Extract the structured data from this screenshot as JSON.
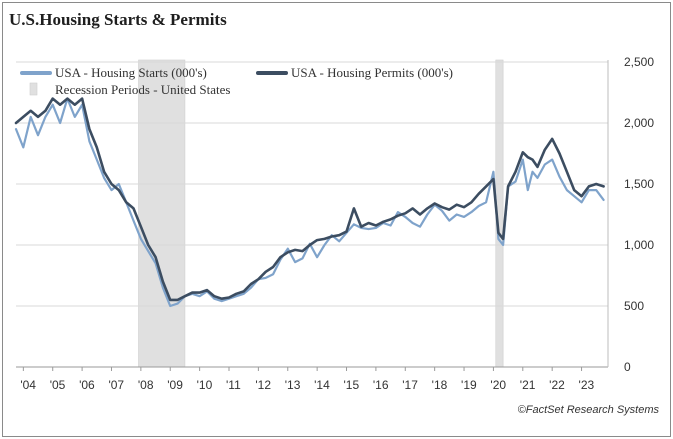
{
  "title": "U.S.Housing Starts & Permits",
  "source": "©FactSet Research Systems",
  "colors": {
    "starts": "#7fa3cb",
    "permits": "#3c4d61",
    "recession": "#e0e0e0",
    "grid": "#d9d9d9"
  },
  "chart_data": {
    "type": "line",
    "title": "U.S.Housing Starts & Permits",
    "xlabel": "",
    "ylabel": "",
    "x_range": [
      2003.75,
      2023.9
    ],
    "ylim": [
      0,
      2500
    ],
    "y_ticks": [
      0,
      500,
      1000,
      1500,
      2000,
      2500
    ],
    "y_tick_labels": [
      "0",
      "500",
      "1,000",
      "1,500",
      "2,000",
      "2,500"
    ],
    "y_axis_side": "right",
    "x_ticks": [
      2004,
      2005,
      2006,
      2007,
      2008,
      2009,
      2010,
      2011,
      2012,
      2013,
      2014,
      2015,
      2016,
      2017,
      2018,
      2019,
      2020,
      2021,
      2022,
      2023
    ],
    "x_tick_labels": [
      "'04",
      "'05",
      "'06",
      "'07",
      "'08",
      "'09",
      "'10",
      "'11",
      "'12",
      "'13",
      "'14",
      "'15",
      "'16",
      "'17",
      "'18",
      "'19",
      "'20",
      "'21",
      "'22",
      "'23"
    ],
    "grid": "horizontal",
    "legend_position": "top-left",
    "recessions": [
      {
        "start": 2007.92,
        "end": 2009.5
      },
      {
        "start": 2020.08,
        "end": 2020.33
      }
    ],
    "legend": [
      {
        "label": "USA - Housing Starts (000's)",
        "type": "line"
      },
      {
        "label": "USA - Housing Permits (000's)",
        "type": "line"
      },
      {
        "label": "Recession Periods - United States",
        "type": "area"
      }
    ],
    "series": [
      {
        "name": "USA - Housing Starts (000's)",
        "x": [
          2003.75,
          2004.0,
          2004.25,
          2004.5,
          2004.75,
          2005.0,
          2005.25,
          2005.5,
          2005.75,
          2006.0,
          2006.25,
          2006.5,
          2006.75,
          2007.0,
          2007.25,
          2007.5,
          2007.75,
          2008.0,
          2008.25,
          2008.5,
          2008.75,
          2009.0,
          2009.25,
          2009.5,
          2009.75,
          2010.0,
          2010.25,
          2010.5,
          2010.75,
          2011.0,
          2011.25,
          2011.5,
          2011.75,
          2012.0,
          2012.25,
          2012.5,
          2012.75,
          2013.0,
          2013.25,
          2013.5,
          2013.75,
          2014.0,
          2014.25,
          2014.5,
          2014.75,
          2015.0,
          2015.25,
          2015.5,
          2015.75,
          2016.0,
          2016.25,
          2016.5,
          2016.75,
          2017.0,
          2017.25,
          2017.5,
          2017.75,
          2018.0,
          2018.25,
          2018.5,
          2018.75,
          2019.0,
          2019.25,
          2019.5,
          2019.75,
          2020.0,
          2020.17,
          2020.33,
          2020.5,
          2020.75,
          2021.0,
          2021.17,
          2021.33,
          2021.5,
          2021.75,
          2022.0,
          2022.25,
          2022.5,
          2022.75,
          2023.0,
          2023.25,
          2023.5,
          2023.75
        ],
        "values": [
          1950,
          1800,
          2050,
          1900,
          2050,
          2150,
          2000,
          2200,
          2050,
          2150,
          1850,
          1700,
          1550,
          1450,
          1500,
          1350,
          1200,
          1050,
          950,
          850,
          650,
          500,
          520,
          580,
          600,
          580,
          620,
          560,
          540,
          560,
          580,
          600,
          650,
          720,
          730,
          760,
          880,
          970,
          860,
          890,
          1010,
          900,
          1000,
          1080,
          1030,
          1100,
          1170,
          1140,
          1130,
          1140,
          1180,
          1160,
          1270,
          1230,
          1180,
          1150,
          1250,
          1330,
          1280,
          1200,
          1250,
          1230,
          1270,
          1320,
          1350,
          1600,
          1050,
          1000,
          1480,
          1520,
          1700,
          1450,
          1600,
          1550,
          1660,
          1700,
          1560,
          1450,
          1400,
          1350,
          1450,
          1450,
          1370
        ]
      },
      {
        "name": "USA - Housing Permits (000's)",
        "x": [
          2003.75,
          2004.0,
          2004.25,
          2004.5,
          2004.75,
          2005.0,
          2005.25,
          2005.5,
          2005.75,
          2006.0,
          2006.25,
          2006.5,
          2006.75,
          2007.0,
          2007.25,
          2007.5,
          2007.75,
          2008.0,
          2008.25,
          2008.5,
          2008.75,
          2009.0,
          2009.25,
          2009.5,
          2009.75,
          2010.0,
          2010.25,
          2010.5,
          2010.75,
          2011.0,
          2011.25,
          2011.5,
          2011.75,
          2012.0,
          2012.25,
          2012.5,
          2012.75,
          2013.0,
          2013.25,
          2013.5,
          2013.75,
          2014.0,
          2014.25,
          2014.5,
          2014.75,
          2015.0,
          2015.25,
          2015.5,
          2015.75,
          2016.0,
          2016.25,
          2016.5,
          2016.75,
          2017.0,
          2017.25,
          2017.5,
          2017.75,
          2018.0,
          2018.25,
          2018.5,
          2018.75,
          2019.0,
          2019.25,
          2019.5,
          2019.75,
          2020.0,
          2020.17,
          2020.33,
          2020.5,
          2020.75,
          2021.0,
          2021.17,
          2021.33,
          2021.5,
          2021.75,
          2022.0,
          2022.25,
          2022.5,
          2022.75,
          2023.0,
          2023.25,
          2023.5,
          2023.75
        ],
        "values": [
          2000,
          2050,
          2100,
          2050,
          2100,
          2200,
          2150,
          2200,
          2150,
          2200,
          1950,
          1800,
          1600,
          1500,
          1450,
          1350,
          1300,
          1150,
          1000,
          900,
          700,
          550,
          550,
          580,
          610,
          610,
          630,
          580,
          560,
          570,
          600,
          620,
          680,
          720,
          780,
          820,
          900,
          940,
          960,
          950,
          1000,
          1040,
          1050,
          1070,
          1080,
          1110,
          1300,
          1150,
          1180,
          1160,
          1190,
          1210,
          1240,
          1260,
          1300,
          1250,
          1300,
          1340,
          1310,
          1290,
          1330,
          1310,
          1350,
          1420,
          1480,
          1540,
          1100,
          1050,
          1480,
          1600,
          1760,
          1720,
          1700,
          1640,
          1780,
          1870,
          1750,
          1600,
          1450,
          1400,
          1480,
          1500,
          1480
        ]
      }
    ]
  }
}
